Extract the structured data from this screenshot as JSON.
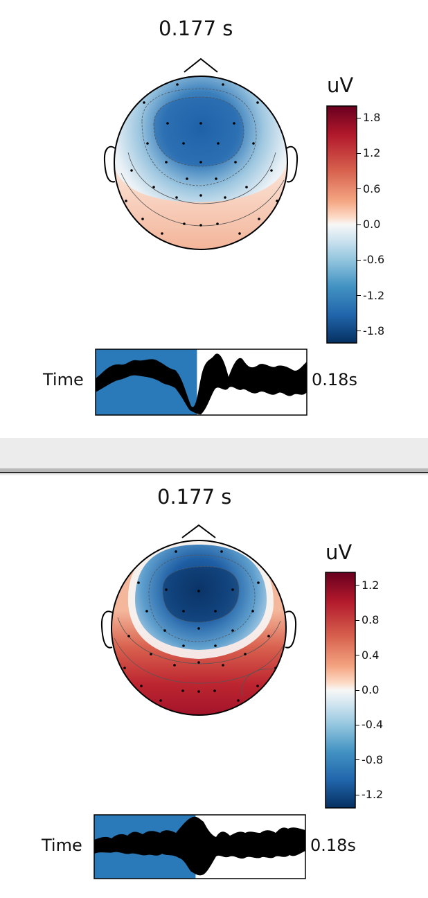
{
  "panels": [
    {
      "title": "0.177 s",
      "colorbar": {
        "unit": "uV",
        "ticks": [
          "1.8",
          "1.2",
          "0.6",
          "0.0",
          "-0.6",
          "-1.2",
          "-1.8"
        ],
        "range": [
          -2.0,
          2.0
        ],
        "colors": {
          "high": "#67001f",
          "mid": "#f7f7f7",
          "low": "#053061"
        }
      },
      "time_slider": {
        "label": "Time",
        "value": "0.18s",
        "fill_fraction": 0.48
      }
    },
    {
      "title": "0.177 s",
      "colorbar": {
        "unit": "uV",
        "ticks": [
          "1.2",
          "0.8",
          "0.4",
          "0.0",
          "-0.4",
          "-0.8",
          "-1.2"
        ],
        "range": [
          -1.35,
          1.35
        ],
        "colors": {
          "high": "#67001f",
          "mid": "#f7f7f7",
          "low": "#053061"
        }
      },
      "time_slider": {
        "label": "Time",
        "value": "0.18s",
        "fill_fraction": 0.48
      }
    }
  ]
}
